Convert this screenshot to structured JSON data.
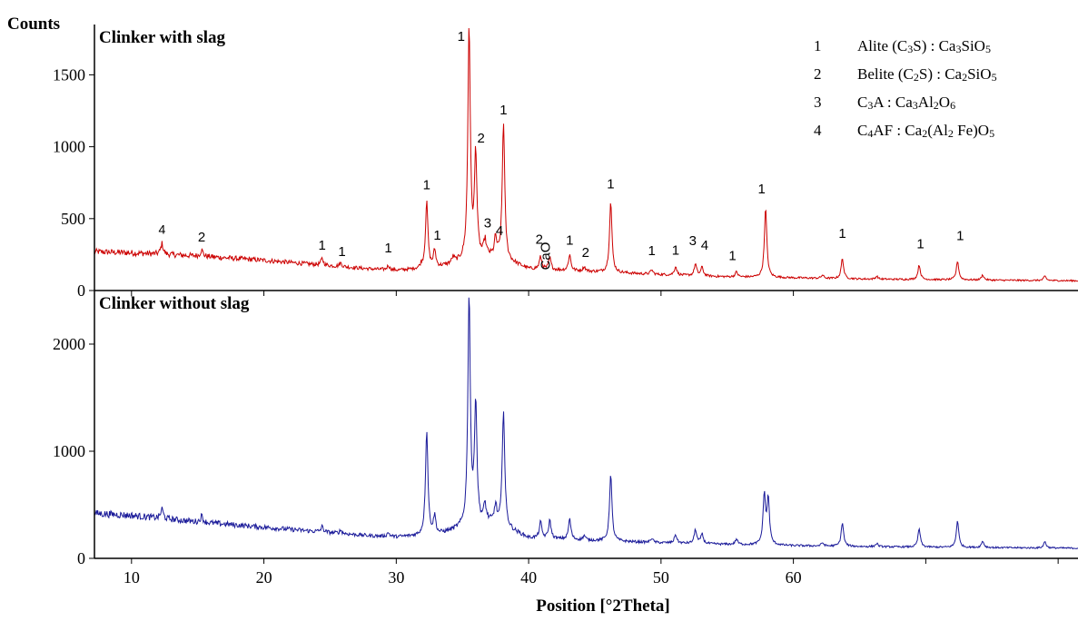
{
  "chart_data": {
    "type": "line",
    "y_axis_title": "Counts",
    "x_axis_title": "Position [°2Theta]",
    "xlim": [
      7.2,
      81.5
    ],
    "x_ticks": [
      10,
      20,
      30,
      40,
      50,
      60
    ],
    "x_tick_labels": [
      "10",
      "20",
      "30",
      "40",
      "50",
      "60"
    ],
    "panels": [
      {
        "title": "Clinker with slag",
        "color": "#cc0000",
        "ylim": [
          0,
          1850
        ],
        "y_ticks": [
          0,
          500,
          1000,
          1500
        ],
        "y_tick_labels": [
          "0",
          "500",
          "1000",
          "1500"
        ],
        "baseline": [
          [
            7.2,
            270
          ],
          [
            10,
            262
          ],
          [
            15,
            240
          ],
          [
            20,
            210
          ],
          [
            25,
            172
          ],
          [
            28,
            150
          ],
          [
            30,
            140
          ],
          [
            33,
            155
          ],
          [
            35,
            200
          ],
          [
            37,
            230
          ],
          [
            38.5,
            200
          ],
          [
            40,
            150
          ],
          [
            45,
            130
          ],
          [
            50,
            110
          ],
          [
            55,
            95
          ],
          [
            60,
            88
          ],
          [
            65,
            80
          ],
          [
            70,
            76
          ],
          [
            75,
            72
          ],
          [
            81.5,
            68
          ]
        ],
        "peaks": [
          {
            "x": 12.3,
            "h": 75
          },
          {
            "x": 15.3,
            "h": 45
          },
          {
            "x": 24.4,
            "h": 45
          },
          {
            "x": 25.8,
            "h": 25
          },
          {
            "x": 29.4,
            "h": 30
          },
          {
            "x": 31.9,
            "h": 20
          },
          {
            "x": 32.3,
            "h": 460
          },
          {
            "x": 32.9,
            "h": 120
          },
          {
            "x": 34.3,
            "h": 40
          },
          {
            "x": 35.5,
            "h": 1620
          },
          {
            "x": 36.0,
            "h": 720
          },
          {
            "x": 36.7,
            "h": 110
          },
          {
            "x": 37.5,
            "h": 130
          },
          {
            "x": 38.1,
            "h": 960
          },
          {
            "x": 40.9,
            "h": 85
          },
          {
            "x": 41.6,
            "h": 80
          },
          {
            "x": 43.1,
            "h": 110
          },
          {
            "x": 44.2,
            "h": 30
          },
          {
            "x": 46.2,
            "h": 490
          },
          {
            "x": 49.3,
            "h": 30
          },
          {
            "x": 51.1,
            "h": 60
          },
          {
            "x": 52.6,
            "h": 80
          },
          {
            "x": 53.1,
            "h": 60
          },
          {
            "x": 55.7,
            "h": 35
          },
          {
            "x": 57.9,
            "h": 480
          },
          {
            "x": 62.2,
            "h": 22
          },
          {
            "x": 63.7,
            "h": 140
          },
          {
            "x": 66.3,
            "h": 20
          },
          {
            "x": 69.5,
            "h": 100
          },
          {
            "x": 72.4,
            "h": 130
          },
          {
            "x": 74.3,
            "h": 35
          },
          {
            "x": 79.0,
            "h": 30
          }
        ],
        "annotations": [
          {
            "text": "4",
            "x": 12.3,
            "y": 395,
            "size": 14
          },
          {
            "text": "2",
            "x": 15.3,
            "y": 340,
            "size": 15
          },
          {
            "text": "1",
            "x": 24.4,
            "y": 285,
            "size": 15
          },
          {
            "text": "1",
            "x": 25.9,
            "y": 240,
            "size": 15
          },
          {
            "text": "1",
            "x": 29.4,
            "y": 265,
            "size": 15
          },
          {
            "text": "1",
            "x": 32.3,
            "y": 705,
            "size": 15
          },
          {
            "text": "1",
            "x": 33.1,
            "y": 355,
            "size": 15
          },
          {
            "text": "1",
            "x": 34.9,
            "y": 1735,
            "size": 15
          },
          {
            "text": "2",
            "x": 36.4,
            "y": 1030,
            "size": 15
          },
          {
            "text": "1",
            "x": 38.1,
            "y": 1225,
            "size": 15
          },
          {
            "text": "3",
            "x": 36.9,
            "y": 440,
            "size": 15
          },
          {
            "text": "4",
            "x": 37.8,
            "y": 385,
            "size": 15
          },
          {
            "text": "2",
            "x": 40.8,
            "y": 325,
            "size": 15
          },
          {
            "text": "CaO",
            "x": 41.6,
            "y": 240,
            "size": 15,
            "rotate": -90
          },
          {
            "text": "1",
            "x": 43.1,
            "y": 320,
            "size": 15
          },
          {
            "text": "2",
            "x": 44.3,
            "y": 235,
            "size": 15
          },
          {
            "text": "1",
            "x": 46.2,
            "y": 710,
            "size": 15
          },
          {
            "text": "1",
            "x": 49.3,
            "y": 245,
            "size": 15
          },
          {
            "text": "1",
            "x": 51.1,
            "y": 250,
            "size": 15
          },
          {
            "text": "3",
            "x": 52.4,
            "y": 315,
            "size": 15
          },
          {
            "text": "4",
            "x": 53.3,
            "y": 285,
            "size": 15
          },
          {
            "text": "1",
            "x": 55.4,
            "y": 210,
            "size": 15
          },
          {
            "text": "1",
            "x": 57.6,
            "y": 675,
            "size": 15
          },
          {
            "text": "1",
            "x": 63.7,
            "y": 365,
            "size": 15
          },
          {
            "text": "1",
            "x": 69.6,
            "y": 295,
            "size": 15
          },
          {
            "text": "1",
            "x": 72.6,
            "y": 350,
            "size": 15
          }
        ]
      },
      {
        "title": "Clinker without slag",
        "color": "#1a1a99",
        "ylim": [
          0,
          2500
        ],
        "y_ticks": [
          0,
          1000,
          2000
        ],
        "y_tick_labels": [
          "0",
          "1000",
          "2000"
        ],
        "baseline": [
          [
            7.2,
            420
          ],
          [
            10,
            400
          ],
          [
            15,
            340
          ],
          [
            20,
            290
          ],
          [
            25,
            240
          ],
          [
            28,
            210
          ],
          [
            30,
            200
          ],
          [
            33,
            215
          ],
          [
            35,
            280
          ],
          [
            37,
            330
          ],
          [
            38.5,
            270
          ],
          [
            40,
            190
          ],
          [
            45,
            165
          ],
          [
            50,
            145
          ],
          [
            55,
            130
          ],
          [
            60,
            118
          ],
          [
            65,
            110
          ],
          [
            70,
            104
          ],
          [
            75,
            100
          ],
          [
            81.5,
            95
          ]
        ],
        "peaks": [
          {
            "x": 12.3,
            "h": 90
          },
          {
            "x": 15.3,
            "h": 60
          },
          {
            "x": 24.4,
            "h": 50
          },
          {
            "x": 25.8,
            "h": 30
          },
          {
            "x": 29.4,
            "h": 35
          },
          {
            "x": 32.3,
            "h": 980
          },
          {
            "x": 32.9,
            "h": 170
          },
          {
            "x": 35.5,
            "h": 2140
          },
          {
            "x": 36.0,
            "h": 1130
          },
          {
            "x": 36.7,
            "h": 160
          },
          {
            "x": 37.5,
            "h": 170
          },
          {
            "x": 38.1,
            "h": 1100
          },
          {
            "x": 40.9,
            "h": 150
          },
          {
            "x": 41.6,
            "h": 170
          },
          {
            "x": 43.1,
            "h": 190
          },
          {
            "x": 44.2,
            "h": 40
          },
          {
            "x": 46.2,
            "h": 620
          },
          {
            "x": 49.3,
            "h": 40
          },
          {
            "x": 51.1,
            "h": 80
          },
          {
            "x": 52.6,
            "h": 130
          },
          {
            "x": 53.1,
            "h": 90
          },
          {
            "x": 55.7,
            "h": 50
          },
          {
            "x": 57.8,
            "h": 460
          },
          {
            "x": 58.1,
            "h": 420
          },
          {
            "x": 62.2,
            "h": 30
          },
          {
            "x": 63.7,
            "h": 220
          },
          {
            "x": 66.3,
            "h": 30
          },
          {
            "x": 69.5,
            "h": 170
          },
          {
            "x": 72.4,
            "h": 250
          },
          {
            "x": 74.3,
            "h": 60
          },
          {
            "x": 79.0,
            "h": 60
          }
        ],
        "annotations": []
      }
    ],
    "legend": {
      "position": "top-right",
      "entries": [
        {
          "num": "1",
          "runs": [
            [
              "Alite (C",
              "n"
            ],
            [
              "3",
              "sub"
            ],
            [
              "S) : Ca",
              "n"
            ],
            [
              "3",
              "sub"
            ],
            [
              "SiO",
              "n"
            ],
            [
              "5",
              "sub"
            ]
          ]
        },
        {
          "num": "2",
          "runs": [
            [
              "Belite (C",
              "n"
            ],
            [
              "2",
              "sub"
            ],
            [
              "S) : Ca",
              "n"
            ],
            [
              "2",
              "sub"
            ],
            [
              "SiO",
              "n"
            ],
            [
              "5",
              "sub"
            ]
          ]
        },
        {
          "num": "3",
          "runs": [
            [
              "C",
              "n"
            ],
            [
              "3",
              "sub"
            ],
            [
              "A : Ca",
              "n"
            ],
            [
              "3",
              "sub"
            ],
            [
              "Al",
              "n"
            ],
            [
              "2",
              "sub"
            ],
            [
              "O",
              "n"
            ],
            [
              "6",
              "sub"
            ]
          ]
        },
        {
          "num": "4",
          "runs": [
            [
              "C",
              "n"
            ],
            [
              "4",
              "sub"
            ],
            [
              "AF : Ca",
              "n"
            ],
            [
              "2",
              "sub"
            ],
            [
              "(Al",
              "n"
            ],
            [
              "2",
              "sub"
            ],
            [
              " Fe)O",
              "n"
            ],
            [
              "5",
              "sub"
            ]
          ]
        }
      ]
    }
  }
}
